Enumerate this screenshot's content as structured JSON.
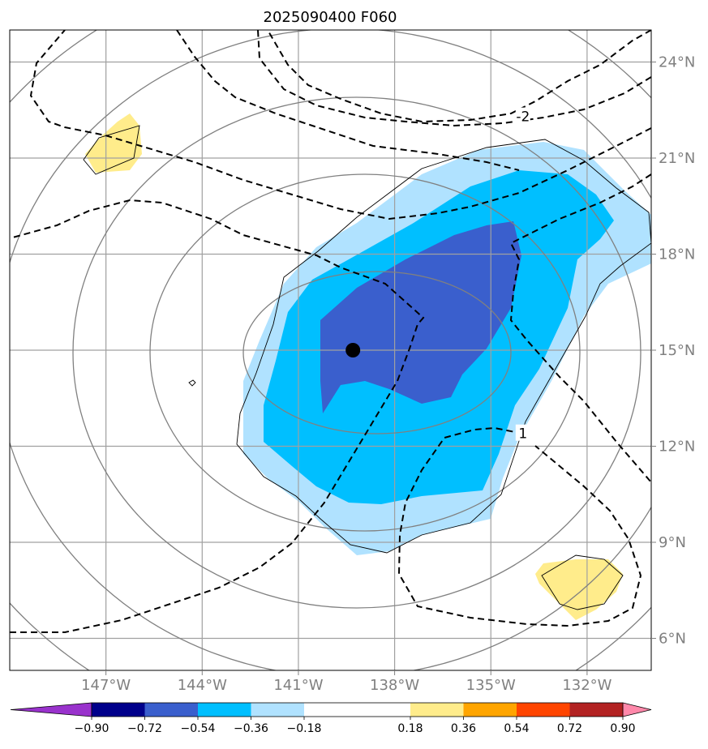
{
  "chart_data": {
    "type": "contour-map",
    "title": "2025090400 F060",
    "x_axis": {
      "range_deg": [
        -150,
        -130
      ],
      "ticks": [
        {
          "value": -147,
          "label": "147°W"
        },
        {
          "value": -144,
          "label": "144°W"
        },
        {
          "value": -141,
          "label": "141°W"
        },
        {
          "value": -138,
          "label": "138°W"
        },
        {
          "value": -135,
          "label": "135°W"
        },
        {
          "value": -132,
          "label": "132°W"
        }
      ]
    },
    "y_axis": {
      "range_deg": [
        5,
        25
      ],
      "ticks": [
        {
          "value": 6,
          "label": "6°N"
        },
        {
          "value": 9,
          "label": "9°N"
        },
        {
          "value": 12,
          "label": "12°N"
        },
        {
          "value": 15,
          "label": "15°N"
        },
        {
          "value": 18,
          "label": "18°N"
        },
        {
          "value": 21,
          "label": "21°N"
        },
        {
          "value": 24,
          "label": "24°N"
        }
      ]
    },
    "center_marker": {
      "lon": -139.3,
      "lat": 15.0
    },
    "contour_labels": [
      {
        "text": "-2",
        "lon": -134.0,
        "lat": 22.3
      },
      {
        "text": "1",
        "lon": -134.0,
        "lat": 12.4
      }
    ],
    "colorbar": {
      "levels": [
        -0.9,
        -0.72,
        -0.54,
        -0.36,
        -0.18,
        0.18,
        0.36,
        0.54,
        0.72,
        0.9
      ],
      "tick_labels": [
        "−0.90",
        "−0.72",
        "−0.54",
        "−0.36",
        "−0.18",
        "0.18",
        "0.36",
        "0.54",
        "0.72",
        "0.90"
      ],
      "under_color": "#9932cc",
      "over_color": "#ff88aa",
      "colors": [
        "#00008b",
        "#3a5fcd",
        "#00bfff",
        "#b0e2ff",
        "#ffffff",
        "#ffec8b",
        "#ffa500",
        "#ff4500",
        "#b22222"
      ]
    },
    "shading_colors": {
      "light_blue": "#b0e2ff",
      "medium_blue": "#00bfff",
      "dark_blue": "#3a5fcd",
      "yellow": "#ffec8b"
    }
  }
}
